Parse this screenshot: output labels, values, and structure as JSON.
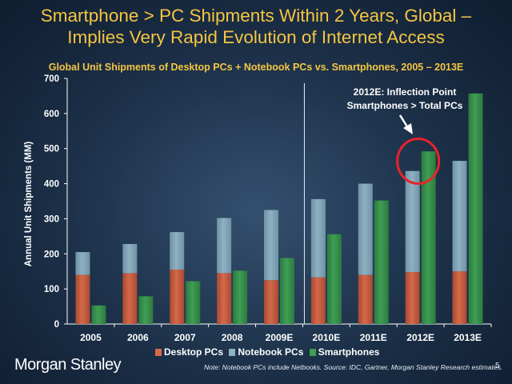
{
  "slide": {
    "title_line1": "Smartphone > PC Shipments Within 2 Years, Global –",
    "title_line2": "Implies Very Rapid Evolution of Internet Access",
    "brand": "Morgan Stanley",
    "note": "Note: Notebook PCs include Netbooks. Source: IDC, Gartner, Morgan Stanley Research estimates.",
    "page_number": "5"
  },
  "annotation": {
    "line1": "2012E: Inflection Point",
    "line2": "Smartphones > Total PCs"
  },
  "colors": {
    "title": "#f5c542",
    "desktop": "#d4694a",
    "notebook": "#8fb1c2",
    "smartphone": "#3f9e54",
    "highlight_circle": "#e8232a"
  },
  "chart_data": {
    "type": "bar",
    "title": "Global Unit Shipments of Desktop PCs + Notebook PCs vs. Smartphones, 2005 – 2013E",
    "xlabel": "",
    "ylabel": "Annual Unit Shipments (MM)",
    "ylim": [
      0,
      700
    ],
    "yticks": [
      0,
      100,
      200,
      300,
      400,
      500,
      600,
      700
    ],
    "categories": [
      "2005",
      "2006",
      "2007",
      "2008",
      "2009E",
      "2010E",
      "2011E",
      "2012E",
      "2013E"
    ],
    "series": [
      {
        "name": "Desktop PCs",
        "stack": "pc",
        "values": [
          140,
          145,
          155,
          145,
          125,
          133,
          140,
          148,
          150
        ]
      },
      {
        "name": "Notebook PCs",
        "stack": "pc",
        "values": [
          65,
          83,
          107,
          157,
          200,
          223,
          260,
          288,
          315
        ]
      },
      {
        "name": "Smartphones",
        "stack": "phone",
        "values": [
          53,
          79,
          122,
          152,
          188,
          256,
          352,
          492,
          657
        ]
      }
    ],
    "legend": [
      "Desktop PCs",
      "Notebook PCs",
      "Smartphones"
    ],
    "divider_after": "2009E",
    "highlight": "2012E"
  }
}
